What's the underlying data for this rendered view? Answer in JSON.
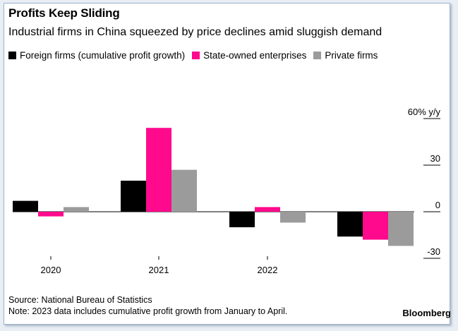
{
  "title": "Profits Keep Sliding",
  "subtitle": "Industrial firms in China squeezed by price declines amid sluggish demand",
  "legend": [
    {
      "label": "Foreign firms (cumulative profit growth)",
      "color": "#000000"
    },
    {
      "label": "State-owned enterprises",
      "color": "#ff0a8c"
    },
    {
      "label": "Private firms",
      "color": "#9b9b9b"
    }
  ],
  "chart_data": {
    "type": "bar",
    "categories": [
      "2020",
      "2021",
      "2022",
      ""
    ],
    "category_ticks": [
      "2020",
      "2021",
      "2022"
    ],
    "series": [
      {
        "name": "Foreign firms (cumulative profit growth)",
        "color": "#000000",
        "values": [
          7,
          20,
          -10,
          -16
        ]
      },
      {
        "name": "State-owned enterprises",
        "color": "#ff0a8c",
        "values": [
          -3,
          54,
          3,
          -18
        ]
      },
      {
        "name": "Private firms",
        "color": "#9b9b9b",
        "values": [
          3,
          27,
          -7,
          -22
        ]
      }
    ],
    "y_ticks": [
      {
        "value": 60,
        "label": "60% y/y"
      },
      {
        "value": 30,
        "label": "30"
      },
      {
        "value": 0,
        "label": "0"
      },
      {
        "value": -30,
        "label": "-30"
      }
    ],
    "ylim": [
      -30,
      60
    ],
    "xlabel": "",
    "ylabel": "",
    "y_axis_position": "right",
    "grid": false
  },
  "source": "Source: National Bureau of Statistics",
  "note": "Note: 2023 data includes cumulative profit growth from January to April.",
  "brand": "Bloomberg"
}
